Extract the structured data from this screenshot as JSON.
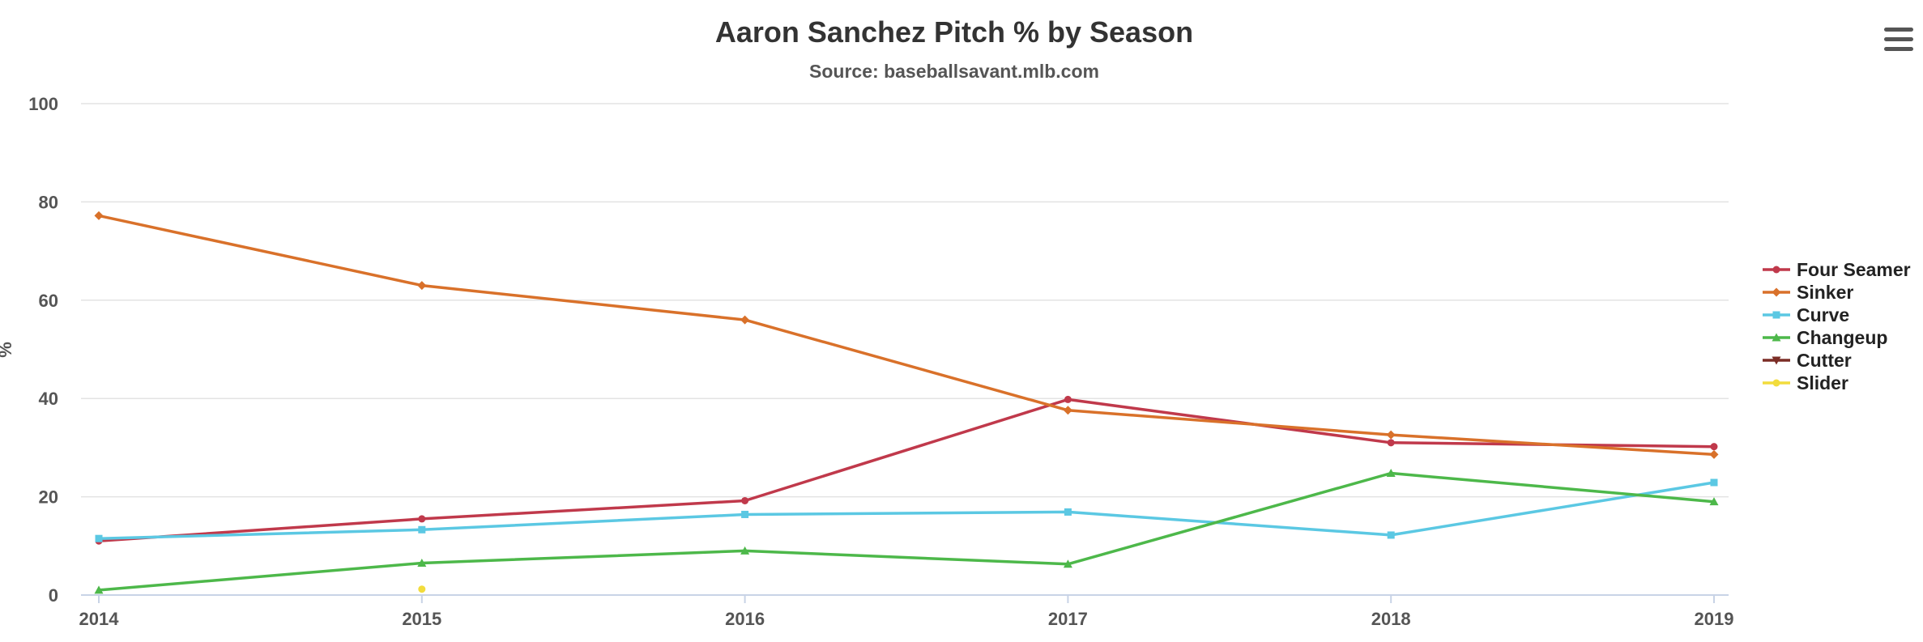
{
  "menu": {
    "icon": "hamburger-menu-icon"
  },
  "chart_data": {
    "type": "line",
    "title": "Aaron Sanchez Pitch % by Season",
    "subtitle": "Source: baseballsavant.mlb.com",
    "xlabel": "",
    "ylabel": "%",
    "x": [
      "2014",
      "2015",
      "2016",
      "2017",
      "2018",
      "2019"
    ],
    "ylim": [
      0,
      100
    ],
    "yticks": [
      0,
      20,
      40,
      60,
      80,
      100
    ],
    "grid": true,
    "legend_position": "right",
    "series": [
      {
        "name": "Four Seamer",
        "color": "#c0394b",
        "marker": "circle",
        "values": [
          11,
          15.5,
          19.2,
          39.8,
          31,
          30.2
        ]
      },
      {
        "name": "Sinker",
        "color": "#d9712a",
        "marker": "diamond",
        "values": [
          77.2,
          63,
          56,
          37.6,
          32.6,
          28.6
        ]
      },
      {
        "name": "Curve",
        "color": "#5bc8e3",
        "marker": "square",
        "values": [
          11.5,
          13.3,
          16.4,
          16.9,
          12.2,
          22.9
        ]
      },
      {
        "name": "Changeup",
        "color": "#4db84a",
        "marker": "triangle",
        "values": [
          1,
          6.5,
          9,
          6.3,
          24.8,
          19
        ]
      },
      {
        "name": "Cutter",
        "color": "#7b2d26",
        "marker": "triangle-down",
        "values": [
          null,
          null,
          null,
          null,
          null,
          null
        ]
      },
      {
        "name": "Slider",
        "color": "#f2dc3c",
        "marker": "circle",
        "values": [
          null,
          1.2,
          null,
          null,
          null,
          null
        ]
      }
    ]
  }
}
